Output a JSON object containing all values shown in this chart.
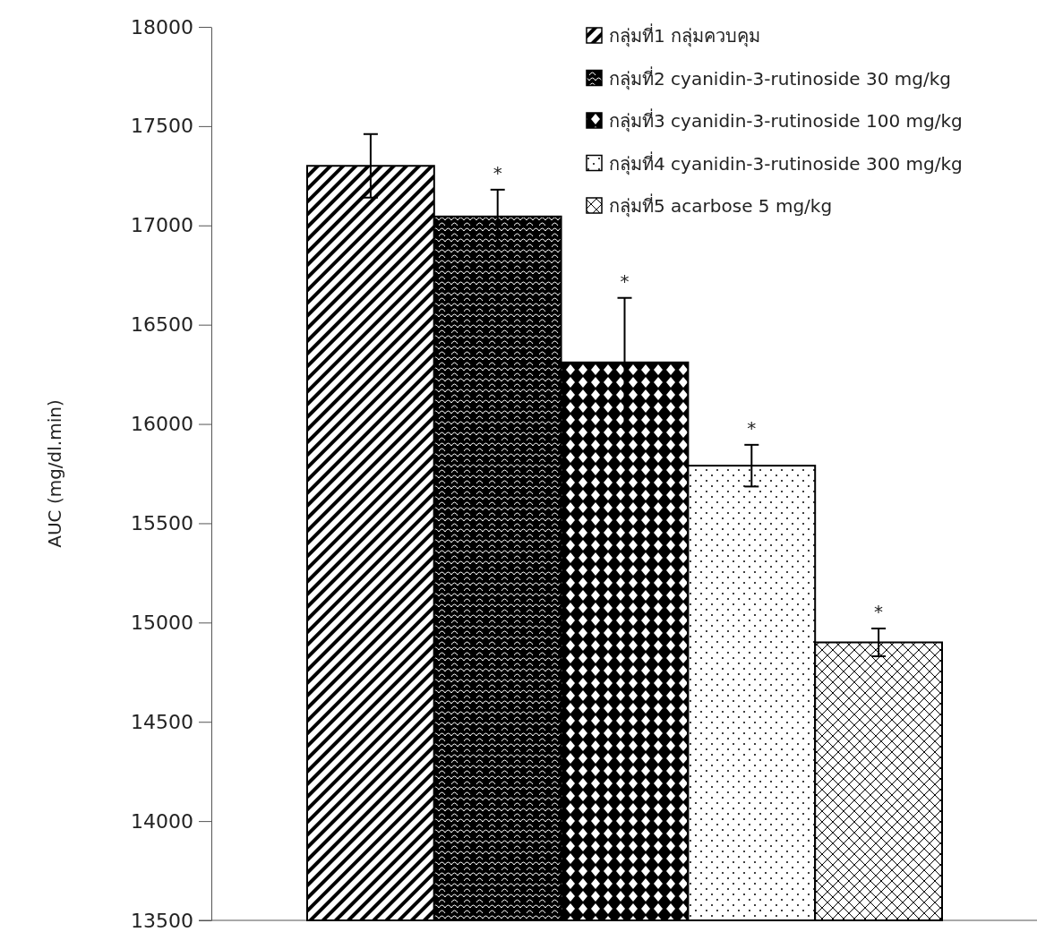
{
  "chart_data": {
    "type": "bar",
    "ylabel": "AUC (mg/dl.min)",
    "categories": [
      null
    ],
    "series": [
      {
        "name": "กลุ่มที่1 กลุ่มควบคุม",
        "color": "#000000",
        "values": [
          17300
        ],
        "errors": [
          160
        ]
      },
      {
        "name": "กลุ่มที่2 cyanidin-3-rutinoside 30 mg/kg",
        "color": "#000000",
        "values": [
          17045
        ],
        "errors": [
          135
        ]
      },
      {
        "name": "กลุ่มที่3 cyanidin-3-rutinoside 100 mg/kg",
        "color": "#000000",
        "values": [
          16310
        ],
        "errors": [
          325
        ]
      },
      {
        "name": "กลุ่มที่4 cyanidin-3-rutinoside 300 mg/kg",
        "color": "#000000",
        "values": [
          15790
        ],
        "errors": [
          105
        ]
      },
      {
        "name": "กลุ่มที่5 acarbose 5 mg/kg",
        "color": "#000000",
        "values": [
          14900
        ],
        "errors": [
          70
        ]
      }
    ],
    "ylim": [
      13500,
      18000
    ],
    "yticks": [
      13500,
      14000,
      14500,
      15000,
      15500,
      16000,
      16500,
      17000,
      17500,
      18000
    ],
    "legend": "top right",
    "annotations": [
      "*",
      "*",
      "*",
      "*"
    ]
  }
}
